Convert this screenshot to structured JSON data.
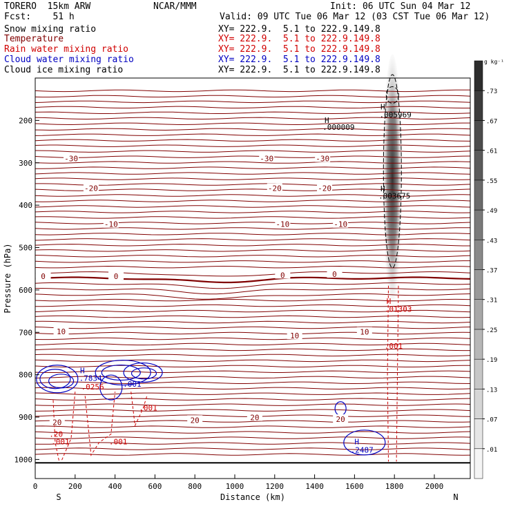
{
  "header": {
    "model": "TORERO  15km ARW",
    "forecast": "Fcst:    51 h",
    "org": "NCAR/MMM",
    "init": "Init: 06 UTC Sun 04 Mar 12",
    "valid": "Valid: 09 UTC Tue 06 Mar 12 (03 CST Tue 06 Mar 12)"
  },
  "fields": [
    {
      "name": "Snow mixing ratio",
      "xy": "XY= 222.9.  5.1 to 222.9.149.8",
      "color": "#000000"
    },
    {
      "name": "Temperature",
      "xy": "XY= 222.9.  5.1 to 222.9.149.8",
      "color": "#800000"
    },
    {
      "name": "Rain water mixing ratio",
      "xy": "XY= 222.9.  5.1 to 222.9.149.8",
      "color": "#d00000"
    },
    {
      "name": "Cloud water mixing ratio",
      "xy": "XY= 222.9.  5.1 to 222.9.149.8",
      "color": "#0000c0"
    },
    {
      "name": "Cloud ice mixing ratio",
      "xy": "XY= 222.9.  5.1 to 222.9.149.8",
      "color": "#000000"
    }
  ],
  "chart_data": {
    "type": "cross-section",
    "xlabel": "Distance (km)",
    "ylabel": "Pressure (hPa)",
    "x_ticks": [
      0,
      200,
      400,
      600,
      800,
      1000,
      1200,
      1400,
      1600,
      1800,
      2000
    ],
    "y_ticks": [
      200,
      300,
      400,
      500,
      600,
      700,
      800,
      900,
      1000
    ],
    "xlim": [
      0,
      2180
    ],
    "ylim": [
      1045,
      100
    ],
    "left_end_label": "S",
    "right_end_label": "N",
    "colorbar": {
      "unit": "g kg⁻¹",
      "levels": [
        ".01",
        ".07",
        ".13",
        ".19",
        ".25",
        ".31",
        ".37",
        ".43",
        ".49",
        ".55",
        ".61",
        ".67",
        ".73"
      ]
    },
    "temperature_labels": [
      {
        "text": "-30",
        "x": 180,
        "p": 290
      },
      {
        "text": "-30",
        "x": 1160,
        "p": 290
      },
      {
        "text": "-30",
        "x": 1440,
        "p": 290
      },
      {
        "text": "-20",
        "x": 280,
        "p": 360
      },
      {
        "text": "-20",
        "x": 1200,
        "p": 360
      },
      {
        "text": "-20",
        "x": 1450,
        "p": 360
      },
      {
        "text": "-10",
        "x": 380,
        "p": 445
      },
      {
        "text": "-10",
        "x": 1240,
        "p": 445
      },
      {
        "text": "-10",
        "x": 1530,
        "p": 445
      },
      {
        "text": "0",
        "x": 40,
        "p": 568
      },
      {
        "text": "0",
        "x": 405,
        "p": 568
      },
      {
        "text": "0",
        "x": 1240,
        "p": 565
      },
      {
        "text": "0",
        "x": 1500,
        "p": 563
      },
      {
        "text": "10",
        "x": 130,
        "p": 698
      },
      {
        "text": "10",
        "x": 1300,
        "p": 708
      },
      {
        "text": "10",
        "x": 1650,
        "p": 699
      },
      {
        "text": "20",
        "x": 110,
        "p": 912
      },
      {
        "text": "20",
        "x": 800,
        "p": 907
      },
      {
        "text": "20",
        "x": 1100,
        "p": 901
      },
      {
        "text": "20",
        "x": 1530,
        "p": 905
      }
    ],
    "maxima_labels": [
      {
        "text": "H",
        "x": 1730,
        "p": 168,
        "color": "#000000"
      },
      {
        "text": ".005969",
        "x": 1725,
        "p": 186,
        "color": "#000000"
      },
      {
        "text": "H",
        "x": 1450,
        "p": 199,
        "color": "#000000"
      },
      {
        "text": ".000009",
        "x": 1440,
        "p": 216,
        "color": "#000000"
      },
      {
        "text": "H",
        "x": 1730,
        "p": 361,
        "color": "#000000"
      },
      {
        "text": ".003675",
        "x": 1720,
        "p": 378,
        "color": "#000000"
      },
      {
        "text": "H",
        "x": 1760,
        "p": 626,
        "color": "#d00000"
      },
      {
        "text": ".01303",
        "x": 1750,
        "p": 645,
        "color": "#d00000"
      },
      {
        "text": ".001",
        "x": 1750,
        "p": 732,
        "color": "#d00000"
      },
      {
        "text": "H",
        "x": 225,
        "p": 790,
        "color": "#0000c0"
      },
      {
        "text": ".7834",
        "x": 220,
        "p": 808,
        "color": "#0000c0"
      },
      {
        "text": ".0256",
        "x": 230,
        "p": 828,
        "color": "#d00000"
      },
      {
        "text": ".001",
        "x": 440,
        "p": 822,
        "color": "#0000c0"
      },
      {
        "text": ".001",
        "x": 520,
        "p": 878,
        "color": "#d00000"
      },
      {
        "text": ".001",
        "x": 370,
        "p": 958,
        "color": "#d00000"
      },
      {
        "text": ".20",
        "x": 70,
        "p": 940,
        "color": "#d00000"
      },
      {
        "text": ".001",
        "x": 80,
        "p": 958,
        "color": "#d00000"
      },
      {
        "text": "H",
        "x": 1600,
        "p": 958,
        "color": "#0000c0"
      },
      {
        "text": ".2487",
        "x": 1580,
        "p": 977,
        "color": "#0000c0"
      }
    ]
  }
}
